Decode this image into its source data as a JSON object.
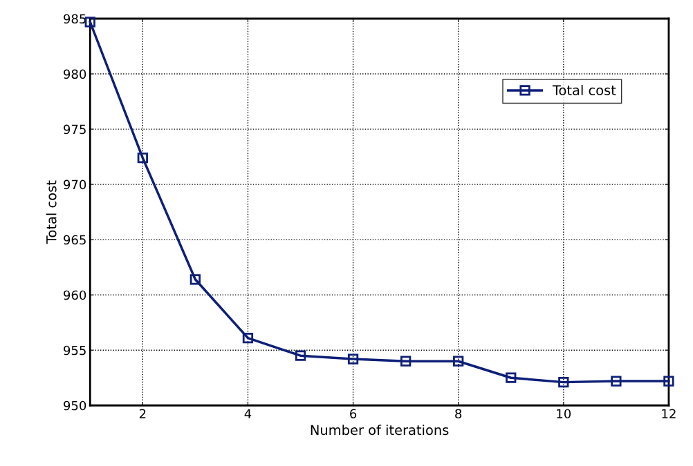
{
  "chart_data": {
    "type": "line",
    "xlabel": "Number of iterations",
    "ylabel": "Total cost",
    "x": [
      1,
      2,
      3,
      4,
      5,
      6,
      7,
      8,
      9,
      10,
      11,
      12
    ],
    "series": [
      {
        "name": "Total cost",
        "color": "#0d1f78",
        "values": [
          984.7,
          972.4,
          961.4,
          956.1,
          954.5,
          954.2,
          954.0,
          954.0,
          952.5,
          952.1,
          952.2,
          952.2
        ]
      }
    ],
    "xlim": [
      1,
      12
    ],
    "xticks": [
      2,
      4,
      6,
      8,
      10,
      12
    ],
    "ylim": [
      950,
      985
    ],
    "yticks": [
      950,
      955,
      960,
      965,
      970,
      975,
      980,
      985
    ],
    "grid": true,
    "legend": "top right",
    "marker": "square",
    "line_style": "solid"
  }
}
